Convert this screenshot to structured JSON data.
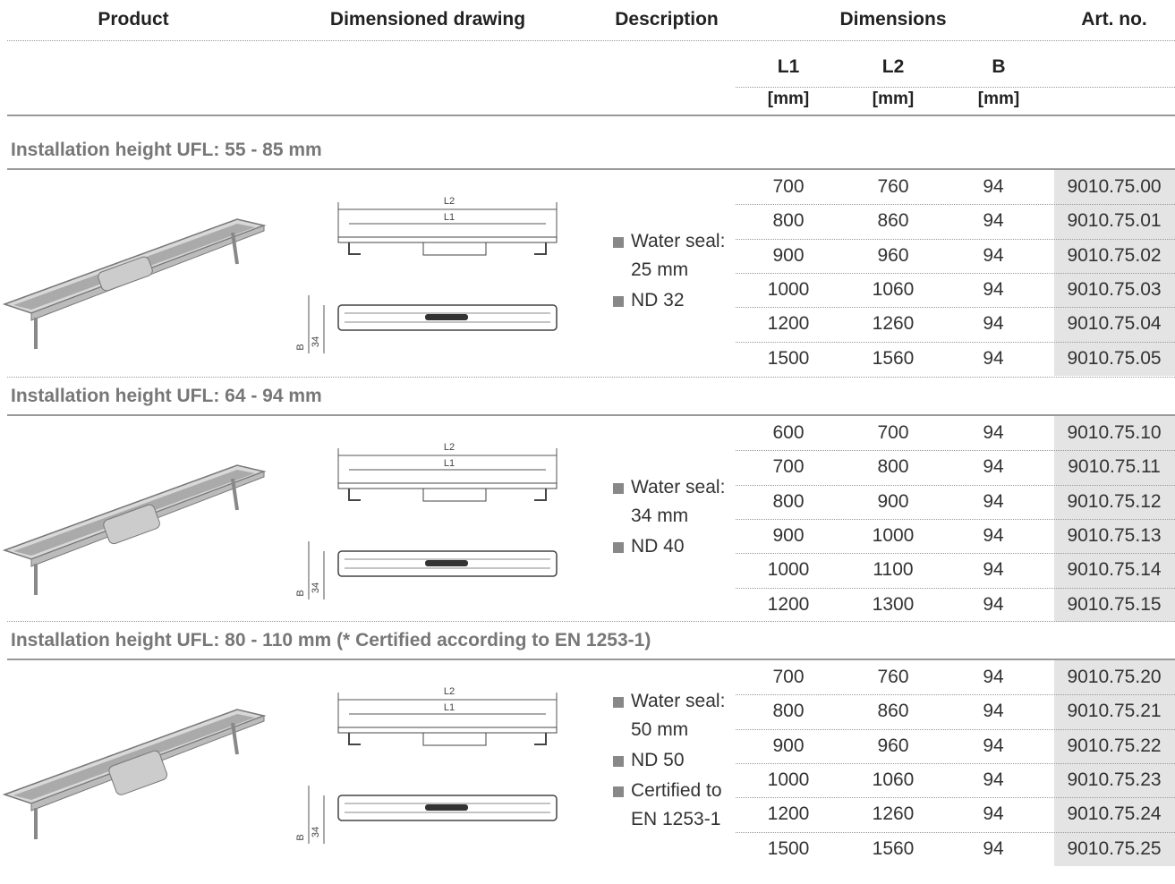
{
  "header": {
    "columns": [
      "Product",
      "Dimensioned drawing",
      "Description",
      "Dimensions",
      "Art. no."
    ],
    "dimensions": [
      {
        "name": "L1",
        "unit": "[mm]"
      },
      {
        "name": "L2",
        "unit": "[mm]"
      },
      {
        "name": "B",
        "unit": "[mm]"
      }
    ]
  },
  "sections": [
    {
      "title": "Installation height UFL: 55 - 85 mm",
      "drawing": {
        "l2": "L2",
        "l1": "L1",
        "b": "B",
        "h": "34"
      },
      "description": [
        "Water seal: 25 mm",
        "ND 32"
      ],
      "rows": [
        [
          "700",
          "760",
          "94",
          "9010.75.00"
        ],
        [
          "800",
          "860",
          "94",
          "9010.75.01"
        ],
        [
          "900",
          "960",
          "94",
          "9010.75.02"
        ],
        [
          "1000",
          "1060",
          "94",
          "9010.75.03"
        ],
        [
          "1200",
          "1260",
          "94",
          "9010.75.04"
        ],
        [
          "1500",
          "1560",
          "94",
          "9010.75.05"
        ]
      ]
    },
    {
      "title": "Installation height UFL: 64 - 94 mm",
      "drawing": {
        "l2": "L2",
        "l1": "L1",
        "b": "B",
        "h": "34"
      },
      "description": [
        "Water seal: 34 mm",
        "ND 40"
      ],
      "rows": [
        [
          "600",
          "700",
          "94",
          "9010.75.10"
        ],
        [
          "700",
          "800",
          "94",
          "9010.75.11"
        ],
        [
          "800",
          "900",
          "94",
          "9010.75.12"
        ],
        [
          "900",
          "1000",
          "94",
          "9010.75.13"
        ],
        [
          "1000",
          "1100",
          "94",
          "9010.75.14"
        ],
        [
          "1200",
          "1300",
          "94",
          "9010.75.15"
        ]
      ]
    },
    {
      "title": "Installation height UFL: 80 - 110 mm (* Certified according to EN 1253-1)",
      "drawing": {
        "l2": "L2",
        "l1": "L1",
        "b": "B",
        "h": "34"
      },
      "description": [
        "Water seal: 50 mm",
        "ND 50",
        "Certified to EN 1253-1"
      ],
      "rows": [
        [
          "700",
          "760",
          "94",
          "9010.75.20"
        ],
        [
          "800",
          "860",
          "94",
          "9010.75.21"
        ],
        [
          "900",
          "960",
          "94",
          "9010.75.22"
        ],
        [
          "1000",
          "1060",
          "94",
          "9010.75.23"
        ],
        [
          "1200",
          "1260",
          "94",
          "9010.75.24"
        ],
        [
          "1500",
          "1560",
          "94",
          "9010.75.25"
        ]
      ]
    }
  ]
}
